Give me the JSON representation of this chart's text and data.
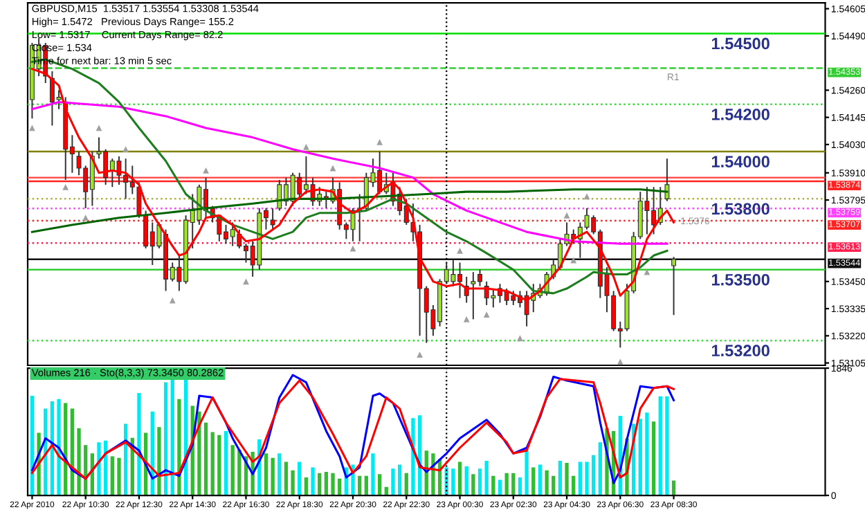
{
  "chart_data": [
    {
      "type": "candlestick",
      "title": "GBPUSD,M15  1.53517 1.53554 1.53308 1.53544",
      "annotations": [
        "High= 1.5472   Previous Days Range= 155.2",
        "Low= 1.5317    Current Days Range= 82.2",
        "Close= 1.534",
        "Time for next bar: 13 min 5 sec",
        {
          "text": "1.54500",
          "x": "2010-04-23T11:00",
          "y": 1.545
        },
        {
          "text": "1.54200",
          "x": "2010-04-23T11:00",
          "y": 1.542
        },
        {
          "text": "1.54000",
          "x": "2010-04-23T11:00",
          "y": 1.54
        },
        {
          "text": "1.53800",
          "x": "2010-04-23T11:00",
          "y": 1.538
        },
        {
          "text": "1.53500",
          "x": "2010-04-23T11:00",
          "y": 1.535
        },
        {
          "text": "1.53200",
          "x": "2010-04-23T11:00",
          "y": 1.532
        },
        {
          "text": "R1",
          "x": "2010-04-23T08:15",
          "y": 1.5434
        },
        {
          "text": "1.5376",
          "x": "2010-04-23T08:45",
          "y": 1.5373
        }
      ],
      "x": [
        "2010-04-22T08:30",
        "2010-04-22T08:45",
        "2010-04-22T09:00",
        "2010-04-22T09:15",
        "2010-04-22T09:30",
        "2010-04-22T09:45",
        "2010-04-22T10:00",
        "2010-04-22T10:15",
        "2010-04-22T10:30",
        "2010-04-22T10:45",
        "2010-04-22T11:00",
        "2010-04-22T11:15",
        "2010-04-22T11:30",
        "2010-04-22T11:45",
        "2010-04-22T12:00",
        "2010-04-22T12:15",
        "2010-04-22T12:30",
        "2010-04-22T12:45",
        "2010-04-22T13:00",
        "2010-04-22T13:15",
        "2010-04-22T13:30",
        "2010-04-22T13:45",
        "2010-04-22T14:00",
        "2010-04-22T14:15",
        "2010-04-22T14:30",
        "2010-04-22T14:45",
        "2010-04-22T15:00",
        "2010-04-22T15:15",
        "2010-04-22T15:30",
        "2010-04-22T15:45",
        "2010-04-22T16:00",
        "2010-04-22T16:15",
        "2010-04-22T16:30",
        "2010-04-22T16:45",
        "2010-04-22T17:00",
        "2010-04-22T17:15",
        "2010-04-22T17:30",
        "2010-04-22T17:45",
        "2010-04-22T18:00",
        "2010-04-22T18:15",
        "2010-04-22T18:30",
        "2010-04-22T18:45",
        "2010-04-22T19:00",
        "2010-04-22T19:15",
        "2010-04-22T19:30",
        "2010-04-22T19:45",
        "2010-04-22T20:00",
        "2010-04-22T20:15",
        "2010-04-22T20:30",
        "2010-04-22T20:45",
        "2010-04-22T21:00",
        "2010-04-22T21:15",
        "2010-04-22T21:30",
        "2010-04-22T21:45",
        "2010-04-22T22:00",
        "2010-04-22T22:15",
        "2010-04-22T22:30",
        "2010-04-22T22:45",
        "2010-04-22T23:00",
        "2010-04-22T23:15",
        "2010-04-22T23:30",
        "2010-04-22T23:45",
        "2010-04-23T00:00",
        "2010-04-23T00:15",
        "2010-04-23T00:30",
        "2010-04-23T00:45",
        "2010-04-23T01:00",
        "2010-04-23T01:15",
        "2010-04-23T01:30",
        "2010-04-23T01:45",
        "2010-04-23T02:00",
        "2010-04-23T02:15",
        "2010-04-23T02:30",
        "2010-04-23T02:45",
        "2010-04-23T03:00",
        "2010-04-23T03:15",
        "2010-04-23T03:30",
        "2010-04-23T03:45",
        "2010-04-23T04:00",
        "2010-04-23T04:15",
        "2010-04-23T04:30",
        "2010-04-23T04:45",
        "2010-04-23T05:00",
        "2010-04-23T05:15",
        "2010-04-23T05:30",
        "2010-04-23T05:45",
        "2010-04-23T06:00",
        "2010-04-23T06:15",
        "2010-04-23T06:30",
        "2010-04-23T06:45",
        "2010-04-23T07:00",
        "2010-04-23T07:15",
        "2010-04-23T07:30",
        "2010-04-23T07:45",
        "2010-04-23T08:00",
        "2010-04-23T08:15",
        "2010-04-23T08:30"
      ],
      "ohlc": [
        [
          1.5422,
          1.5446,
          1.5414,
          1.5445
        ],
        [
          1.5435,
          1.5448,
          1.5432,
          1.5445
        ],
        [
          1.5445,
          1.5446,
          1.5429,
          1.5432
        ],
        [
          1.5431,
          1.5434,
          1.5411,
          1.5421
        ],
        [
          1.5422,
          1.5426,
          1.5418,
          1.5423
        ],
        [
          1.5421,
          1.5423,
          1.5388,
          1.5401
        ],
        [
          1.5402,
          1.5407,
          1.5391,
          1.5399
        ],
        [
          1.5398,
          1.54,
          1.539,
          1.5393
        ],
        [
          1.5393,
          1.5394,
          1.5376,
          1.5383
        ],
        [
          1.5384,
          1.54,
          1.5377,
          1.5398
        ],
        [
          1.5399,
          1.5406,
          1.5397,
          1.54
        ],
        [
          1.54,
          1.5401,
          1.5386,
          1.5389
        ],
        [
          1.5392,
          1.5397,
          1.5385,
          1.5396
        ],
        [
          1.5396,
          1.5398,
          1.5386,
          1.539
        ],
        [
          1.539,
          1.5397,
          1.538,
          1.5387
        ],
        [
          1.5387,
          1.5394,
          1.5382,
          1.5385
        ],
        [
          1.5385,
          1.5387,
          1.5372,
          1.5373
        ],
        [
          1.5373,
          1.5375,
          1.5359,
          1.536
        ],
        [
          1.5366,
          1.537,
          1.5352,
          1.536
        ],
        [
          1.536,
          1.537,
          1.5359,
          1.5369
        ],
        [
          1.5365,
          1.5367,
          1.5341,
          1.5346
        ],
        [
          1.5346,
          1.5353,
          1.5345,
          1.5351
        ],
        [
          1.5351,
          1.5356,
          1.5341,
          1.5345
        ],
        [
          1.5345,
          1.5373,
          1.5344,
          1.5371
        ],
        [
          1.537,
          1.5382,
          1.5359,
          1.5375
        ],
        [
          1.5371,
          1.5386,
          1.5369,
          1.5385
        ],
        [
          1.5384,
          1.5389,
          1.5372,
          1.5375
        ],
        [
          1.5376,
          1.5377,
          1.537,
          1.5372
        ],
        [
          1.5373,
          1.5373,
          1.5362,
          1.5365
        ],
        [
          1.5366,
          1.5369,
          1.5361,
          1.5363
        ],
        [
          1.5364,
          1.537,
          1.536,
          1.5367
        ],
        [
          1.5365,
          1.5367,
          1.5359,
          1.536
        ],
        [
          1.536,
          1.5361,
          1.5353,
          1.5358
        ],
        [
          1.536,
          1.5362,
          1.5347,
          1.5352
        ],
        [
          1.5352,
          1.5376,
          1.535,
          1.5374
        ],
        [
          1.5375,
          1.5376,
          1.5367,
          1.5372
        ],
        [
          1.5371,
          1.5376,
          1.5367,
          1.5369
        ],
        [
          1.5376,
          1.5388,
          1.5375,
          1.5386
        ],
        [
          1.5379,
          1.5389,
          1.5377,
          1.5386
        ],
        [
          1.5379,
          1.5391,
          1.5377,
          1.539
        ],
        [
          1.5389,
          1.5391,
          1.538,
          1.5382
        ],
        [
          1.5384,
          1.5398,
          1.5382,
          1.5386
        ],
        [
          1.5386,
          1.5389,
          1.5377,
          1.5379
        ],
        [
          1.5379,
          1.5385,
          1.5377,
          1.5382
        ],
        [
          1.5381,
          1.5383,
          1.5376,
          1.538
        ],
        [
          1.5379,
          1.5389,
          1.5378,
          1.5384
        ],
        [
          1.5384,
          1.5387,
          1.5367,
          1.5369
        ],
        [
          1.5369,
          1.537,
          1.5363,
          1.5367
        ],
        [
          1.5367,
          1.5376,
          1.5362,
          1.5375
        ],
        [
          1.5375,
          1.5382,
          1.5362,
          1.5376
        ],
        [
          1.5376,
          1.5391,
          1.5375,
          1.5389
        ],
        [
          1.5387,
          1.5397,
          1.5385,
          1.5391
        ],
        [
          1.5392,
          1.54,
          1.5382,
          1.5383
        ],
        [
          1.5383,
          1.5391,
          1.5382,
          1.5386
        ],
        [
          1.5387,
          1.5391,
          1.5377,
          1.5379
        ],
        [
          1.5382,
          1.5385,
          1.5373,
          1.5375
        ],
        [
          1.5377,
          1.538,
          1.5369,
          1.537
        ],
        [
          1.537,
          1.5378,
          1.5362,
          1.5366
        ],
        [
          1.5366,
          1.5369,
          1.5322,
          1.5342
        ],
        [
          1.5342,
          1.5343,
          1.5319,
          1.5332
        ],
        [
          1.5333,
          1.5335,
          1.5322,
          1.5325
        ],
        [
          1.5328,
          1.5346,
          1.5326,
          1.5345
        ],
        [
          1.5345,
          1.5353,
          1.5344,
          1.535
        ],
        [
          1.5345,
          1.5354,
          1.5343,
          1.5348
        ],
        [
          1.5348,
          1.5353,
          1.5338,
          1.5345
        ],
        [
          1.5343,
          1.5347,
          1.5336,
          1.5339
        ],
        [
          1.5344,
          1.5349,
          1.5329,
          1.5345
        ],
        [
          1.5348,
          1.535,
          1.5343,
          1.5345
        ],
        [
          1.5343,
          1.5345,
          1.5335,
          1.5338
        ],
        [
          1.5338,
          1.5342,
          1.5334,
          1.5339
        ],
        [
          1.5342,
          1.5344,
          1.5336,
          1.5339
        ],
        [
          1.5341,
          1.5342,
          1.5335,
          1.5337
        ],
        [
          1.5339,
          1.5341,
          1.5335,
          1.5337
        ],
        [
          1.5339,
          1.5341,
          1.5334,
          1.5336
        ],
        [
          1.5339,
          1.5341,
          1.5326,
          1.5331
        ],
        [
          1.5337,
          1.5344,
          1.5332,
          1.534
        ],
        [
          1.5339,
          1.5344,
          1.5338,
          1.5342
        ],
        [
          1.534,
          1.5349,
          1.5339,
          1.5348
        ],
        [
          1.5347,
          1.5354,
          1.5346,
          1.5352
        ],
        [
          1.5351,
          1.5363,
          1.535,
          1.5361
        ],
        [
          1.5361,
          1.537,
          1.536,
          1.5365
        ],
        [
          1.5365,
          1.5367,
          1.5361,
          1.5363
        ],
        [
          1.5363,
          1.537,
          1.5355,
          1.5368
        ],
        [
          1.5368,
          1.5376,
          1.5367,
          1.5373
        ],
        [
          1.5372,
          1.5373,
          1.5365,
          1.5366
        ],
        [
          1.5366,
          1.5367,
          1.5338,
          1.5343
        ],
        [
          1.5348,
          1.5351,
          1.5332,
          1.5339
        ],
        [
          1.5339,
          1.5341,
          1.5324,
          1.5325
        ],
        [
          1.5325,
          1.5328,
          1.5317,
          1.5324
        ],
        [
          1.5325,
          1.5344,
          1.5324,
          1.5341
        ],
        [
          1.5341,
          1.5366,
          1.534,
          1.5364
        ],
        [
          1.5364,
          1.5383,
          1.5363,
          1.5379
        ],
        [
          1.5379,
          1.5385,
          1.5365,
          1.5375
        ],
        [
          1.5375,
          1.5385,
          1.5365,
          1.5369
        ],
        [
          1.537,
          1.5385,
          1.5369,
          1.5376
        ],
        [
          1.538,
          1.5397,
          1.5379,
          1.5386
        ],
        [
          1.53517,
          1.53554,
          1.53308,
          1.53544
        ]
      ],
      "colors": [
        "#9be22f",
        "#9be22f",
        "#ff0000",
        "#ff0000",
        "#9be22f",
        "#ff0000",
        "#ff0000",
        "#ff0000",
        "#ff0000",
        "#9be22f",
        "#9be22f",
        "#ff0000",
        "#9be22f",
        "#ff0000",
        "#ff0000",
        "#ff0000",
        "#ff0000",
        "#ff0000",
        "#ff0000",
        "#9be22f",
        "#ff0000",
        "#9be22f",
        "#ff0000",
        "#9be22f",
        "#9be22f",
        "#9be22f",
        "#ff0000",
        "#ff0000",
        "#ff0000",
        "#ff0000",
        "#9be22f",
        "#ff0000",
        "#ff0000",
        "#ff0000",
        "#9be22f",
        "#ff0000",
        "#ff0000",
        "#9be22f",
        "#9be22f",
        "#9be22f",
        "#ff0000",
        "#9be22f",
        "#ff0000",
        "#9be22f",
        "#ff0000",
        "#9be22f",
        "#ff0000",
        "#ff0000",
        "#9be22f",
        "#9be22f",
        "#9be22f",
        "#9be22f",
        "#ff0000",
        "#9be22f",
        "#ff0000",
        "#ff0000",
        "#ff0000",
        "#ff0000",
        "#ff0000",
        "#ff0000",
        "#ff0000",
        "#9be22f",
        "#9be22f",
        "#9be22f",
        "#ff0000",
        "#ff0000",
        "#9be22f",
        "#ff0000",
        "#ff0000",
        "#9be22f",
        "#ff0000",
        "#ff0000",
        "#ff0000",
        "#ff0000",
        "#ff0000",
        "#9be22f",
        "#9be22f",
        "#9be22f",
        "#9be22f",
        "#9be22f",
        "#9be22f",
        "#ff0000",
        "#9be22f",
        "#9be22f",
        "#ff0000",
        "#ff0000",
        "#ff0000",
        "#ff0000",
        "#ff0000",
        "#9be22f",
        "#9be22f",
        "#9be22f",
        "#ff0000",
        "#ff0000",
        "#9be22f",
        "#9be22f",
        "#9be22f"
      ],
      "series": [
        {
          "type": "line",
          "color": "#ff00ff",
          "x": [
            "2010-04-22T08:30",
            "2010-04-22T09:30",
            "2010-04-22T11:45",
            "2010-04-22T13:30",
            "2010-04-22T15:00",
            "2010-04-22T16:45",
            "2010-04-22T18:15",
            "2010-04-22T19:45",
            "2010-04-22T21:30",
            "2010-04-22T22:45",
            "2010-04-22T23:30",
            "2010-04-23T00:45",
            "2010-04-23T01:30",
            "2010-04-23T03:00",
            "2010-04-23T04:45",
            "2010-04-23T06:30",
            "2010-04-23T08:15"
          ],
          "values": [
            1.5418,
            1.5421,
            1.5419,
            1.5415,
            1.541,
            1.5406,
            1.5401,
            1.5397,
            1.5393,
            1.5389,
            1.5382,
            1.5375,
            1.5372,
            1.5366,
            1.5362,
            1.5361,
            1.5361
          ]
        },
        {
          "type": "line",
          "color": "#006400",
          "x": [
            "2010-04-22T08:30",
            "2010-04-22T10:00",
            "2010-04-22T11:45",
            "2010-04-22T13:30",
            "2010-04-22T15:00",
            "2010-04-22T16:45",
            "2010-04-22T18:15",
            "2010-04-22T19:45",
            "2010-04-22T21:30",
            "2010-04-22T23:15",
            "2010-04-23T00:45",
            "2010-04-23T02:15",
            "2010-04-23T04:45",
            "2010-04-23T07:15",
            "2010-04-23T08:15"
          ],
          "values": [
            1.5366,
            1.5369,
            1.5372,
            1.5374,
            1.5376,
            1.5378,
            1.538,
            1.538,
            1.5381,
            1.5382,
            1.5383,
            1.5383,
            1.5384,
            1.5384,
            1.5383
          ]
        },
        {
          "type": "line",
          "color": "#1e7d1e",
          "x": [
            "2010-04-22T08:30",
            "2010-04-22T09:00",
            "2010-04-22T10:00",
            "2010-04-22T11:00",
            "2010-04-22T11:45",
            "2010-04-22T12:30",
            "2010-04-22T13:30",
            "2010-04-22T14:15",
            "2010-04-22T15:00",
            "2010-04-22T16:00",
            "2010-04-22T16:45",
            "2010-04-22T17:30",
            "2010-04-22T18:15",
            "2010-04-22T18:45",
            "2010-04-22T19:15",
            "2010-04-22T20:15",
            "2010-04-22T21:00",
            "2010-04-22T22:00",
            "2010-04-22T22:30",
            "2010-04-22T23:15",
            "2010-04-23T00:00",
            "2010-04-23T00:45",
            "2010-04-23T01:30",
            "2010-04-23T02:30",
            "2010-04-23T03:15",
            "2010-04-23T04:00",
            "2010-04-23T04:30",
            "2010-04-23T05:15",
            "2010-04-23T05:30",
            "2010-04-23T06:15",
            "2010-04-23T06:45",
            "2010-04-23T07:15",
            "2010-04-23T07:45",
            "2010-04-23T08:15"
          ],
          "values": [
            1.5438,
            1.5439,
            1.5435,
            1.5429,
            1.5421,
            1.541,
            1.5396,
            1.5382,
            1.5375,
            1.5369,
            1.5366,
            1.5363,
            1.5366,
            1.5372,
            1.5374,
            1.5374,
            1.5375,
            1.538,
            1.5378,
            1.5372,
            1.5366,
            1.5362,
            1.5357,
            1.535,
            1.5341,
            1.534,
            1.5342,
            1.5347,
            1.5349,
            1.5348,
            1.5348,
            1.5351,
            1.5356,
            1.5358
          ]
        },
        {
          "type": "line",
          "color": "#ff0000",
          "x": [
            "2010-04-22T08:30",
            "2010-04-22T09:00",
            "2010-04-22T09:30",
            "2010-04-22T09:45",
            "2010-04-22T10:15",
            "2010-04-22T10:45",
            "2010-04-22T11:00",
            "2010-04-22T11:30",
            "2010-04-22T12:00",
            "2010-04-22T12:30",
            "2010-04-22T12:45",
            "2010-04-22T13:15",
            "2010-04-22T13:45",
            "2010-04-22T14:00",
            "2010-04-22T14:15",
            "2010-04-22T14:45",
            "2010-04-22T15:00",
            "2010-04-22T15:30",
            "2010-04-22T16:00",
            "2010-04-22T16:15",
            "2010-04-22T16:30",
            "2010-04-22T17:00",
            "2010-04-22T17:45",
            "2010-04-22T18:15",
            "2010-04-22T18:45",
            "2010-04-22T19:15",
            "2010-04-22T19:45",
            "2010-04-22T20:00",
            "2010-04-22T20:30",
            "2010-04-22T21:00",
            "2010-04-22T21:30",
            "2010-04-22T22:00",
            "2010-04-22T22:15",
            "2010-04-22T22:45",
            "2010-04-22T23:00",
            "2010-04-22T23:30",
            "2010-04-23T00:00",
            "2010-04-23T00:30",
            "2010-04-23T00:45",
            "2010-04-23T01:30",
            "2010-04-23T02:15",
            "2010-04-23T03:00",
            "2010-04-23T03:30",
            "2010-04-23T04:15",
            "2010-04-23T04:45",
            "2010-04-23T05:15",
            "2010-04-23T05:45",
            "2010-04-23T06:15",
            "2010-04-23T06:30",
            "2010-04-23T07:00",
            "2010-04-23T07:30",
            "2010-04-23T08:00",
            "2010-04-23T08:15",
            "2010-04-23T08:30"
          ],
          "values": [
            1.5435,
            1.5433,
            1.5428,
            1.5418,
            1.5406,
            1.5397,
            1.5391,
            1.5392,
            1.5391,
            1.5386,
            1.5378,
            1.5369,
            1.536,
            1.5356,
            1.5357,
            1.5366,
            1.5372,
            1.5373,
            1.5369,
            1.5365,
            1.5362,
            1.5363,
            1.5369,
            1.5378,
            1.5383,
            1.5384,
            1.5383,
            1.5378,
            1.5374,
            1.5377,
            1.5383,
            1.5387,
            1.5384,
            1.5372,
            1.5355,
            1.5345,
            1.5343,
            1.5344,
            1.5342,
            1.5342,
            1.5341,
            1.5337,
            1.5341,
            1.5351,
            1.5363,
            1.5366,
            1.5359,
            1.5347,
            1.5339,
            1.5345,
            1.5363,
            1.5372,
            1.5375,
            1.537
          ]
        },
        {
          "type": "scatter",
          "color": "#a0a0a0",
          "marker": "triangle",
          "x": [
            "2010-04-22T11:00",
            "2010-04-22T12:00",
            "2010-04-22T15:00",
            "2010-04-22T18:45",
            "2010-04-22T19:45",
            "2010-04-22T21:30",
            "2010-04-23T00:30",
            "2010-04-23T04:30",
            "2010-04-23T05:15"
          ],
          "values": [
            1.541,
            1.5401,
            1.5392,
            1.5402,
            1.5393,
            1.5404,
            1.5358,
            1.5373,
            1.5381
          ]
        },
        {
          "type": "scatter",
          "color": "#a0a0a0",
          "marker": "triangle",
          "x": [
            "2010-04-22T08:30",
            "2010-04-22T09:45",
            "2010-04-22T10:30",
            "2010-04-22T13:45",
            "2010-04-22T16:30",
            "2010-04-22T20:30",
            "2010-04-22T23:00",
            "2010-04-23T00:45",
            "2010-04-23T01:30",
            "2010-04-23T02:45",
            "2010-04-23T04:45",
            "2010-04-23T06:30",
            "2010-04-23T07:30"
          ],
          "values": [
            1.541,
            1.5385,
            1.5372,
            1.5337,
            1.5345,
            1.5359,
            1.5314,
            1.5329,
            1.5331,
            1.5321,
            1.5354,
            1.5311,
            1.5349
          ]
        }
      ],
      "ref_lines": [
        {
          "axis": "y",
          "value": 1.545,
          "color": "#00dd00",
          "line_style": "solid"
        },
        {
          "axis": "y",
          "value": 1.54353,
          "label": "1.54353",
          "color": "#33cc33",
          "line_style": "dashed"
        },
        {
          "axis": "y",
          "value": 1.542,
          "color": "#33dd33",
          "line_style": "dotted"
        },
        {
          "axis": "y",
          "value": 1.54,
          "color": "#808000",
          "line_style": "solid"
        },
        {
          "axis": "y",
          "value": 1.5389,
          "color": "#ff5050",
          "line_style": "solid"
        },
        {
          "axis": "y",
          "value": 1.53874,
          "label": "1.53874",
          "color": "#ff2020",
          "line_style": "solid"
        },
        {
          "axis": "y",
          "value": 1.538,
          "color": "#b0b040",
          "line_style": "dotted"
        },
        {
          "axis": "y",
          "value": 1.53759,
          "label": "1.53759",
          "color": "#ff40ff",
          "line_style": "dotted"
        },
        {
          "axis": "y",
          "value": 1.53707,
          "label": "1.53707",
          "color": "#ff2020",
          "line_style": "dotted"
        },
        {
          "axis": "y",
          "value": 1.53613,
          "label": "1.53613",
          "color": "#ff2050",
          "line_style": "dotted"
        },
        {
          "axis": "y",
          "value": 1.53544,
          "label": "1.53544",
          "color": "#101010",
          "line_style": "solid"
        },
        {
          "axis": "y",
          "value": 1.535,
          "color": "#33cc33",
          "line_style": "solid"
        },
        {
          "axis": "y",
          "value": 1.532,
          "color": "#33dd33",
          "line_style": "dotted"
        },
        {
          "axis": "x",
          "value": "2010-04-23T00:00",
          "color": "#000000",
          "line_style": "dotted"
        }
      ],
      "xlim": [
        "2010-04-22T08:20",
        "2010-04-23T14:10"
      ],
      "ylim": [
        1.53095,
        1.5463
      ],
      "yticks": [
        {
          "value": 1.54605,
          "label": "1.54605"
        },
        {
          "value": 1.5449,
          "label": "1.54490"
        },
        {
          "value": 1.5426,
          "label": "1.54260"
        },
        {
          "value": 1.54145,
          "label": "1.54145"
        },
        {
          "value": 1.5403,
          "label": "1.54030"
        },
        {
          "value": 1.5391,
          "label": "1.53910"
        },
        {
          "value": 1.53795,
          "label": "1.53795"
        },
        {
          "value": 1.5345,
          "label": "1.53450"
        },
        {
          "value": 1.53335,
          "label": "1.53335"
        },
        {
          "value": 1.5322,
          "label": "1.53220"
        },
        {
          "value": 1.53105,
          "label": "1.53105"
        }
      ],
      "tick_labels": "y"
    },
    {
      "type": "bar",
      "title": "Volumes 216 · Sto(8,3,3) 73.3450 80.2862",
      "x": [
        "2010-04-22T08:30",
        "2010-04-22T08:45",
        "2010-04-22T09:00",
        "2010-04-22T09:15",
        "2010-04-22T09:30",
        "2010-04-22T09:45",
        "2010-04-22T10:00",
        "2010-04-22T10:15",
        "2010-04-22T10:30",
        "2010-04-22T10:45",
        "2010-04-22T11:00",
        "2010-04-22T11:15",
        "2010-04-22T11:30",
        "2010-04-22T11:45",
        "2010-04-22T12:00",
        "2010-04-22T12:15",
        "2010-04-22T12:30",
        "2010-04-22T12:45",
        "2010-04-22T13:00",
        "2010-04-22T13:15",
        "2010-04-22T13:30",
        "2010-04-22T13:45",
        "2010-04-22T14:00",
        "2010-04-22T14:15",
        "2010-04-22T14:30",
        "2010-04-22T14:45",
        "2010-04-22T15:00",
        "2010-04-22T15:15",
        "2010-04-22T15:30",
        "2010-04-22T15:45",
        "2010-04-22T16:00",
        "2010-04-22T16:15",
        "2010-04-22T16:30",
        "2010-04-22T16:45",
        "2010-04-22T17:00",
        "2010-04-22T17:15",
        "2010-04-22T17:30",
        "2010-04-22T17:45",
        "2010-04-22T18:00",
        "2010-04-22T18:15",
        "2010-04-22T18:30",
        "2010-04-22T18:45",
        "2010-04-22T19:00",
        "2010-04-22T19:15",
        "2010-04-22T19:30",
        "2010-04-22T19:45",
        "2010-04-22T20:00",
        "2010-04-22T20:15",
        "2010-04-22T20:30",
        "2010-04-22T20:45",
        "2010-04-22T21:00",
        "2010-04-22T21:15",
        "2010-04-22T21:30",
        "2010-04-22T21:45",
        "2010-04-22T22:00",
        "2010-04-22T22:15",
        "2010-04-22T22:30",
        "2010-04-22T22:45",
        "2010-04-22T23:00",
        "2010-04-22T23:15",
        "2010-04-22T23:30",
        "2010-04-22T23:45",
        "2010-04-23T00:00",
        "2010-04-23T00:15",
        "2010-04-23T00:30",
        "2010-04-23T00:45",
        "2010-04-23T01:00",
        "2010-04-23T01:15",
        "2010-04-23T01:30",
        "2010-04-23T01:45",
        "2010-04-23T02:00",
        "2010-04-23T02:15",
        "2010-04-23T02:30",
        "2010-04-23T02:45",
        "2010-04-23T03:00",
        "2010-04-23T03:15",
        "2010-04-23T03:30",
        "2010-04-23T03:45",
        "2010-04-23T04:00",
        "2010-04-23T04:15",
        "2010-04-23T04:30",
        "2010-04-23T04:45",
        "2010-04-23T05:00",
        "2010-04-23T05:15",
        "2010-04-23T05:30",
        "2010-04-23T05:45",
        "2010-04-23T06:00",
        "2010-04-23T06:15",
        "2010-04-23T06:30",
        "2010-04-23T06:45",
        "2010-04-23T07:00",
        "2010-04-23T07:15",
        "2010-04-23T07:30",
        "2010-04-23T07:45",
        "2010-04-23T08:00",
        "2010-04-23T08:15",
        "2010-04-23T08:30"
      ],
      "values": [
        1445,
        909,
        1259,
        1364,
        1397,
        1340,
        1259,
        974,
        731,
        609,
        771,
        796,
        568,
        544,
        1039,
        836,
        1486,
        909,
        1218,
        990,
        1640,
        1689,
        1397,
        1681,
        1299,
        1218,
        1056,
        918,
        877,
        934,
        731,
        666,
        568,
        633,
        812,
        609,
        544,
        609,
        487,
        365,
        487,
        260,
        406,
        325,
        341,
        325,
        244,
        406,
        447,
        284,
        284,
        609,
        309,
        122,
        390,
        447,
        325,
        1121,
        1161,
        650,
        609,
        528,
        406,
        390,
        487,
        422,
        309,
        390,
        503,
        284,
        227,
        325,
        325,
        260,
        650,
        406,
        447,
        365,
        284,
        503,
        471,
        284,
        487,
        487,
        585,
        771,
        974,
        934,
        1153,
        828,
        1039,
        1112,
        1202,
        1072,
        1437,
        1437,
        216
      ],
      "colors": [
        "#00e8f0",
        "#33bb33",
        "#00e8f0",
        "#00e8f0",
        "#00e8f0",
        "#33bb33",
        "#33bb33",
        "#33bb33",
        "#33bb33",
        "#33bb33",
        "#00e8f0",
        "#00e8f0",
        "#33bb33",
        "#33bb33",
        "#00e8f0",
        "#33bb33",
        "#00e8f0",
        "#33bb33",
        "#00e8f0",
        "#33bb33",
        "#00e8f0",
        "#00e8f0",
        "#33bb33",
        "#00e8f0",
        "#33bb33",
        "#33bb33",
        "#33bb33",
        "#33bb33",
        "#33bb33",
        "#00e8f0",
        "#33bb33",
        "#33bb33",
        "#33bb33",
        "#33bb33",
        "#00e8f0",
        "#33bb33",
        "#33bb33",
        "#00e8f0",
        "#33bb33",
        "#33bb33",
        "#00e8f0",
        "#33bb33",
        "#00e8f0",
        "#33bb33",
        "#33bb33",
        "#33bb33",
        "#33bb33",
        "#00e8f0",
        "#00e8f0",
        "#33bb33",
        "#33bb33",
        "#00e8f0",
        "#33bb33",
        "#33bb33",
        "#00e8f0",
        "#00e8f0",
        "#33bb33",
        "#00e8f0",
        "#00e8f0",
        "#33bb33",
        "#33bb33",
        "#33bb33",
        "#00e8f0",
        "#00e8f0",
        "#33bb33",
        "#00e8f0",
        "#33bb33",
        "#00e8f0",
        "#00e8f0",
        "#33bb33",
        "#00e8f0",
        "#33bb33",
        "#33bb33",
        "#00e8f0",
        "#00e8f0",
        "#33bb33",
        "#00e8f0",
        "#33bb33",
        "#33bb33",
        "#00e8f0",
        "#33bb33",
        "#33bb33",
        "#00e8f0",
        "#00e8f0",
        "#00e8f0",
        "#00e8f0",
        "#33bb33",
        "#33bb33",
        "#00e8f0",
        "#33bb33",
        "#00e8f0",
        "#00e8f0",
        "#00e8f0",
        "#33bb33",
        "#00e8f0",
        "#00e8f0",
        "#33bb33"
      ],
      "series": [
        {
          "type": "line",
          "color": "#0000ff",
          "x": [
            "2010-04-22T08:30",
            "2010-04-22T09:00",
            "2010-04-22T09:30",
            "2010-04-22T10:00",
            "2010-04-22T10:30",
            "2010-04-22T11:15",
            "2010-04-22T12:00",
            "2010-04-22T12:30",
            "2010-04-22T13:00",
            "2010-04-22T13:30",
            "2010-04-22T14:00",
            "2010-04-22T14:30",
            "2010-04-22T14:45",
            "2010-04-22T15:15",
            "2010-04-22T15:45",
            "2010-04-22T16:00",
            "2010-04-22T16:45",
            "2010-04-22T17:15",
            "2010-04-22T17:45",
            "2010-04-22T18:15",
            "2010-04-22T18:45",
            "2010-04-22T19:30",
            "2010-04-22T20:00",
            "2010-04-22T20:15",
            "2010-04-22T20:45",
            "2010-04-22T21:15",
            "2010-04-22T21:30",
            "2010-04-22T22:00",
            "2010-04-22T22:30",
            "2010-04-22T23:00",
            "2010-04-22T23:15",
            "2010-04-23T00:00",
            "2010-04-23T00:30",
            "2010-04-23T01:30",
            "2010-04-23T02:00",
            "2010-04-23T02:30",
            "2010-04-23T03:00",
            "2010-04-23T03:30",
            "2010-04-23T04:00",
            "2010-04-23T04:30",
            "2010-04-23T05:30",
            "2010-04-23T05:45",
            "2010-04-23T06:15",
            "2010-04-23T06:30",
            "2010-04-23T06:45",
            "2010-04-23T07:15",
            "2010-04-23T07:45",
            "2010-04-23T08:15",
            "2010-04-23T08:30"
          ],
          "values": [
            365,
            828,
            690,
            365,
            244,
            609,
            796,
            650,
            244,
            365,
            284,
            731,
            1445,
            1421,
            1056,
            828,
            309,
            690,
            1421,
            1746,
            1640,
            934,
            568,
            260,
            406,
            1445,
            1478,
            1340,
            893,
            447,
            341,
            609,
            828,
            1096,
            893,
            609,
            690,
            1137,
            1721,
            1665,
            1583,
            1056,
            179,
            365,
            812,
            1583,
            1559,
            1583,
            1380
          ]
        },
        {
          "type": "line",
          "color": "#ff0000",
          "x": [
            "2010-04-22T08:30",
            "2010-04-22T09:15",
            "2010-04-22T09:30",
            "2010-04-22T10:30",
            "2010-04-22T11:15",
            "2010-04-22T12:00",
            "2010-04-22T12:45",
            "2010-04-22T13:15",
            "2010-04-22T14:00",
            "2010-04-22T14:45",
            "2010-04-22T15:15",
            "2010-04-22T15:45",
            "2010-04-22T16:45",
            "2010-04-22T17:00",
            "2010-04-22T17:45",
            "2010-04-22T18:30",
            "2010-04-22T19:00",
            "2010-04-22T19:45",
            "2010-04-22T20:30",
            "2010-04-22T21:00",
            "2010-04-22T21:45",
            "2010-04-22T22:15",
            "2010-04-22T23:00",
            "2010-04-22T23:45",
            "2010-04-23T00:30",
            "2010-04-23T01:30",
            "2010-04-23T02:15",
            "2010-04-23T02:30",
            "2010-04-23T03:00",
            "2010-04-23T03:45",
            "2010-04-23T04:15",
            "2010-04-23T05:30",
            "2010-04-23T05:45",
            "2010-04-23T06:30",
            "2010-04-23T06:45",
            "2010-04-23T07:15",
            "2010-04-23T07:45",
            "2010-04-23T08:15",
            "2010-04-23T08:30"
          ],
          "values": [
            325,
            731,
            568,
            244,
            609,
            771,
            487,
            284,
            325,
            1015,
            1421,
            1056,
            487,
            568,
            1340,
            1665,
            1421,
            893,
            325,
            568,
            1421,
            1259,
            406,
            365,
            690,
            1056,
            771,
            609,
            650,
            1421,
            1689,
            1640,
            1340,
            260,
            325,
            1259,
            1559,
            1583,
            1542
          ]
        }
      ],
      "ref_lines": [
        {
          "axis": "x",
          "value": "2010-04-23T00:00",
          "color": "#000000",
          "line_style": "dotted"
        }
      ],
      "xlim": [
        "2010-04-22T08:20",
        "2010-04-23T14:10"
      ],
      "xticks": [
        {
          "value": "2010-04-22T08:30",
          "label": "22 Apr 2010"
        },
        {
          "value": "2010-04-22T10:30",
          "label": "22 Apr 10:30"
        },
        {
          "value": "2010-04-22T12:30",
          "label": "22 Apr 12:30"
        },
        {
          "value": "2010-04-22T14:30",
          "label": "22 Apr 14:30"
        },
        {
          "value": "2010-04-22T16:30",
          "label": "22 Apr 16:30"
        },
        {
          "value": "2010-04-22T18:30",
          "label": "22 Apr 18:30"
        },
        {
          "value": "2010-04-22T20:30",
          "label": "22 Apr 20:30"
        },
        {
          "value": "2010-04-22T22:30",
          "label": "22 Apr 22:30"
        },
        {
          "value": "2010-04-23T00:30",
          "label": "23 Apr 00:30"
        },
        {
          "value": "2010-04-23T02:30",
          "label": "23 Apr 02:30"
        },
        {
          "value": "2010-04-23T04:30",
          "label": "23 Apr 04:30"
        },
        {
          "value": "2010-04-23T06:30",
          "label": "23 Apr 06:30"
        },
        {
          "value": "2010-04-23T08:30",
          "label": "23 Apr 08:30"
        }
      ],
      "ylim": [
        0,
        1846
      ],
      "yticks": [
        0,
        1846
      ]
    }
  ]
}
